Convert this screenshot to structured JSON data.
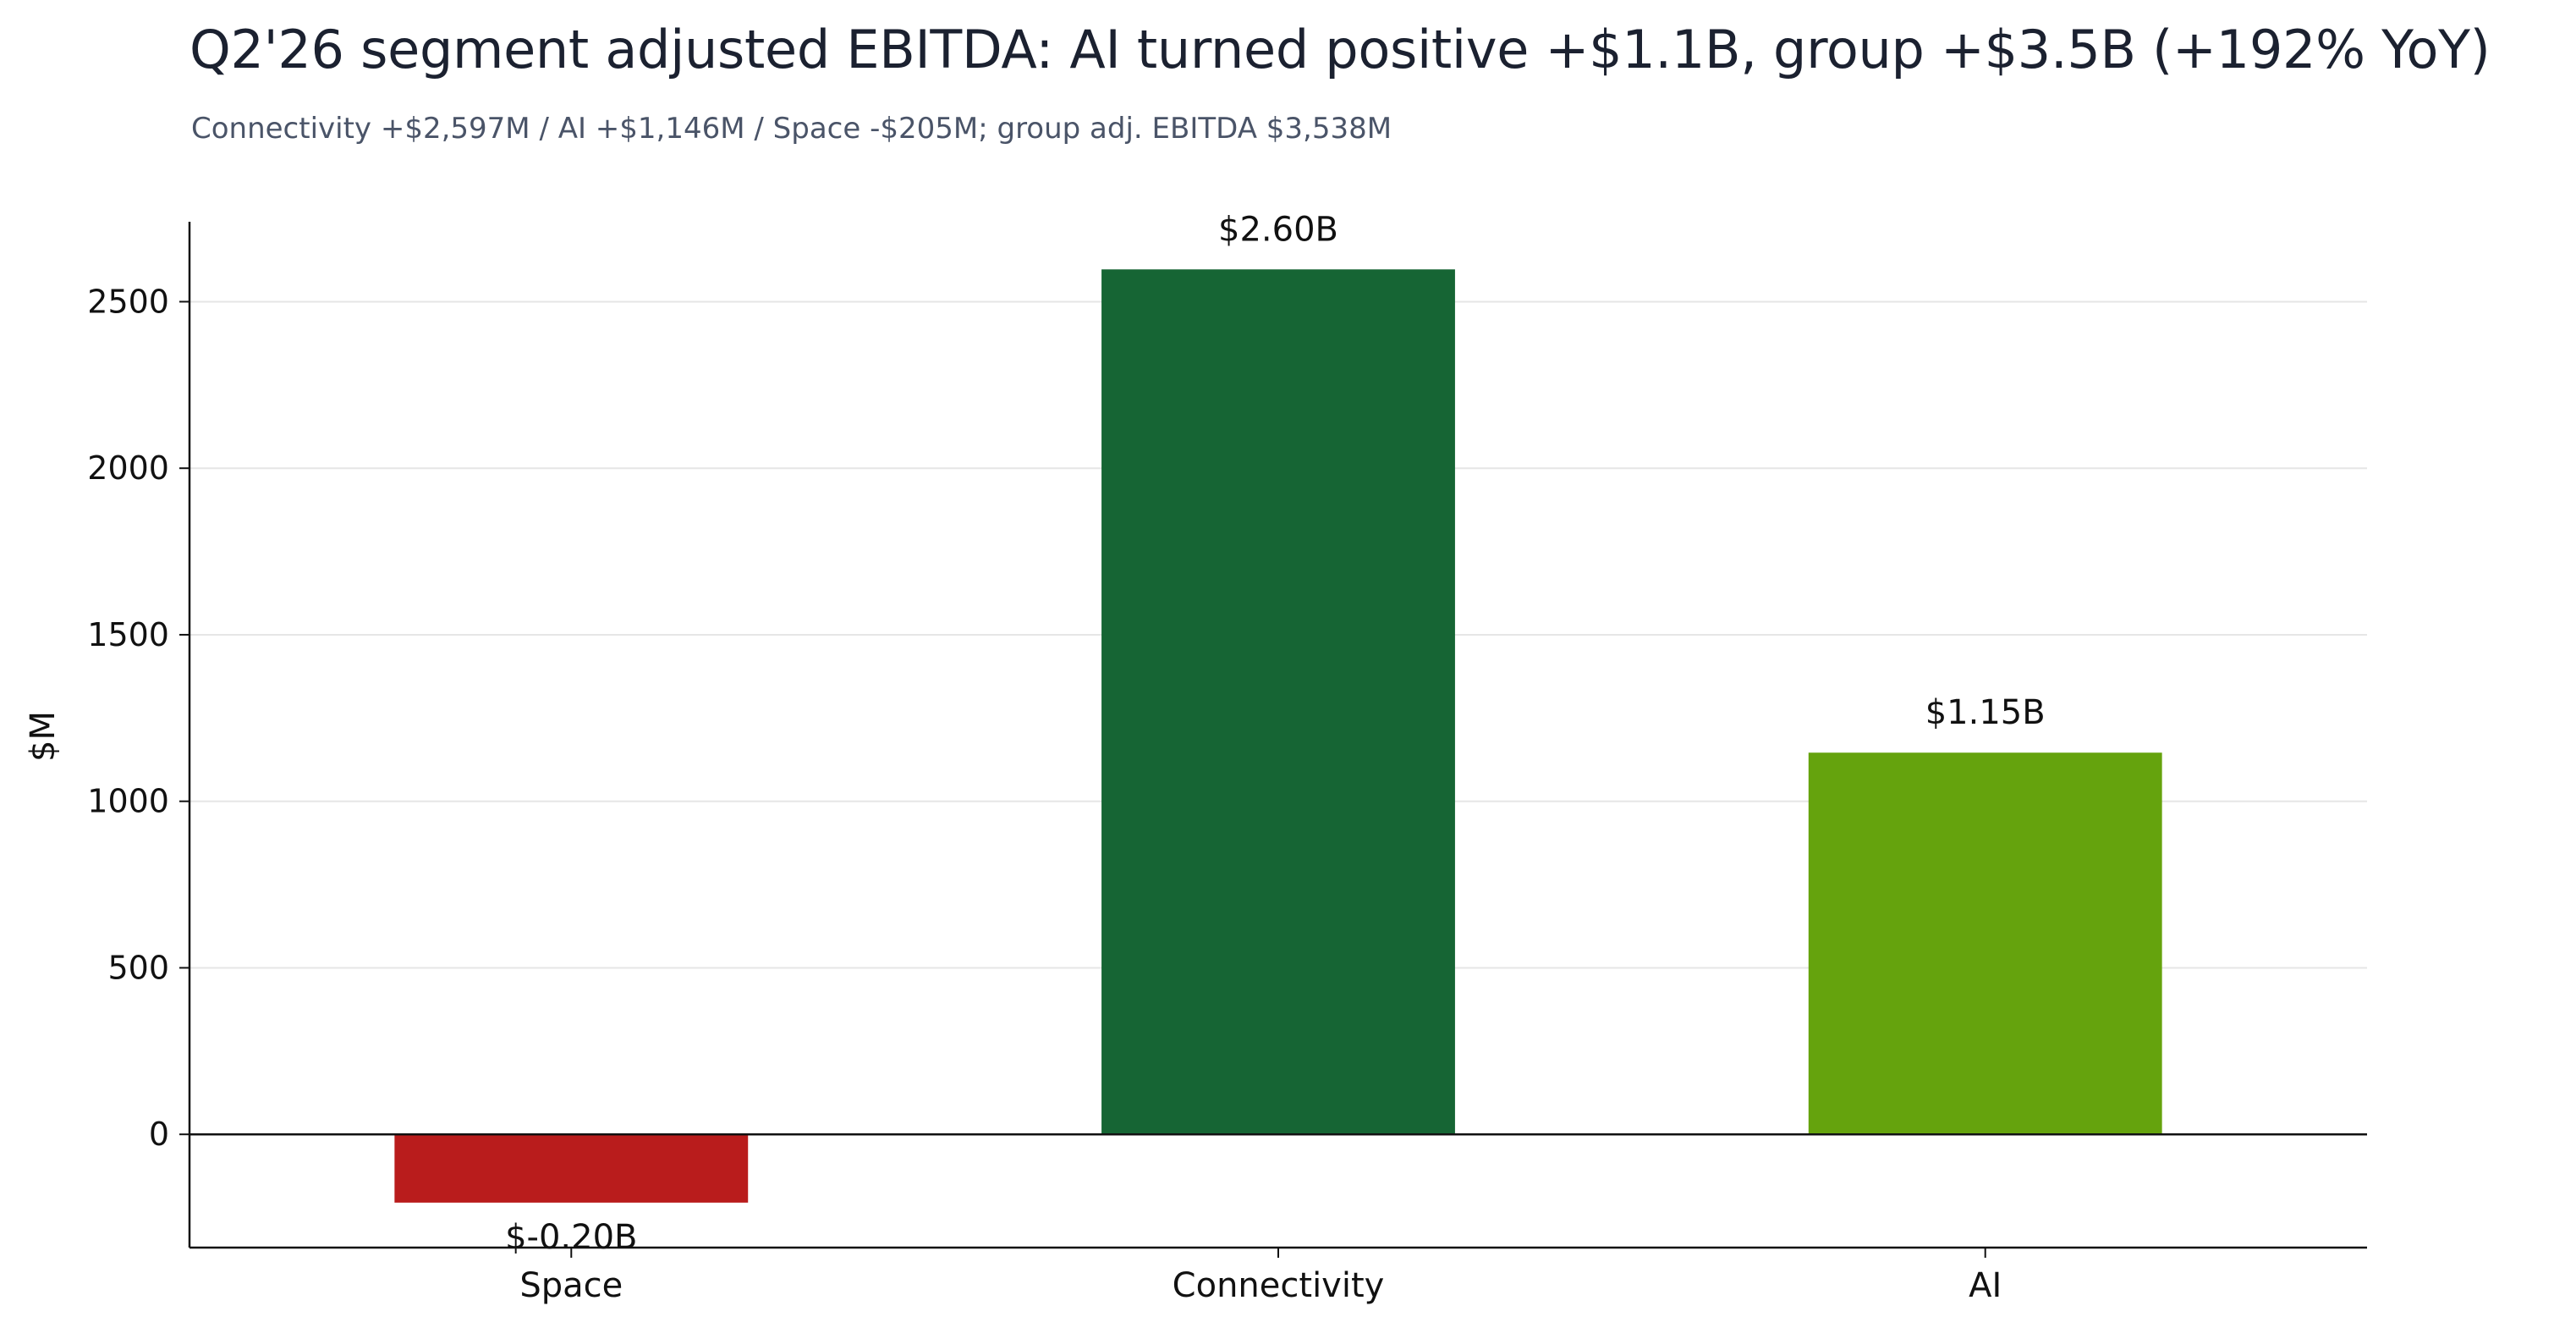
{
  "chart_data": {
    "type": "bar",
    "title": "Q2'26 segment adjusted EBITDA: AI turned positive +$1.1B, group +$3.5B (+192% YoY)",
    "subtitle": "Connectivity +$2,597M / AI +$1,146M / Space -$205M; group adj. EBITDA $3,538M",
    "xlabel": "",
    "ylabel": "$M",
    "categories": [
      "Space",
      "Connectivity",
      "AI"
    ],
    "values": [
      -205,
      2597,
      1146
    ],
    "value_labels": [
      "$-0.20B",
      "$2.60B",
      "$1.15B"
    ],
    "colors": [
      "#b91c1c",
      "#166534",
      "#65a30d"
    ],
    "ylim": [
      -340,
      2740
    ],
    "yticks": [
      0,
      500,
      1000,
      1500,
      2000,
      2500
    ],
    "ytick_labels": [
      "0",
      "500",
      "1000",
      "1500",
      "2000",
      "2500"
    ],
    "grid": true,
    "legend": "none"
  }
}
